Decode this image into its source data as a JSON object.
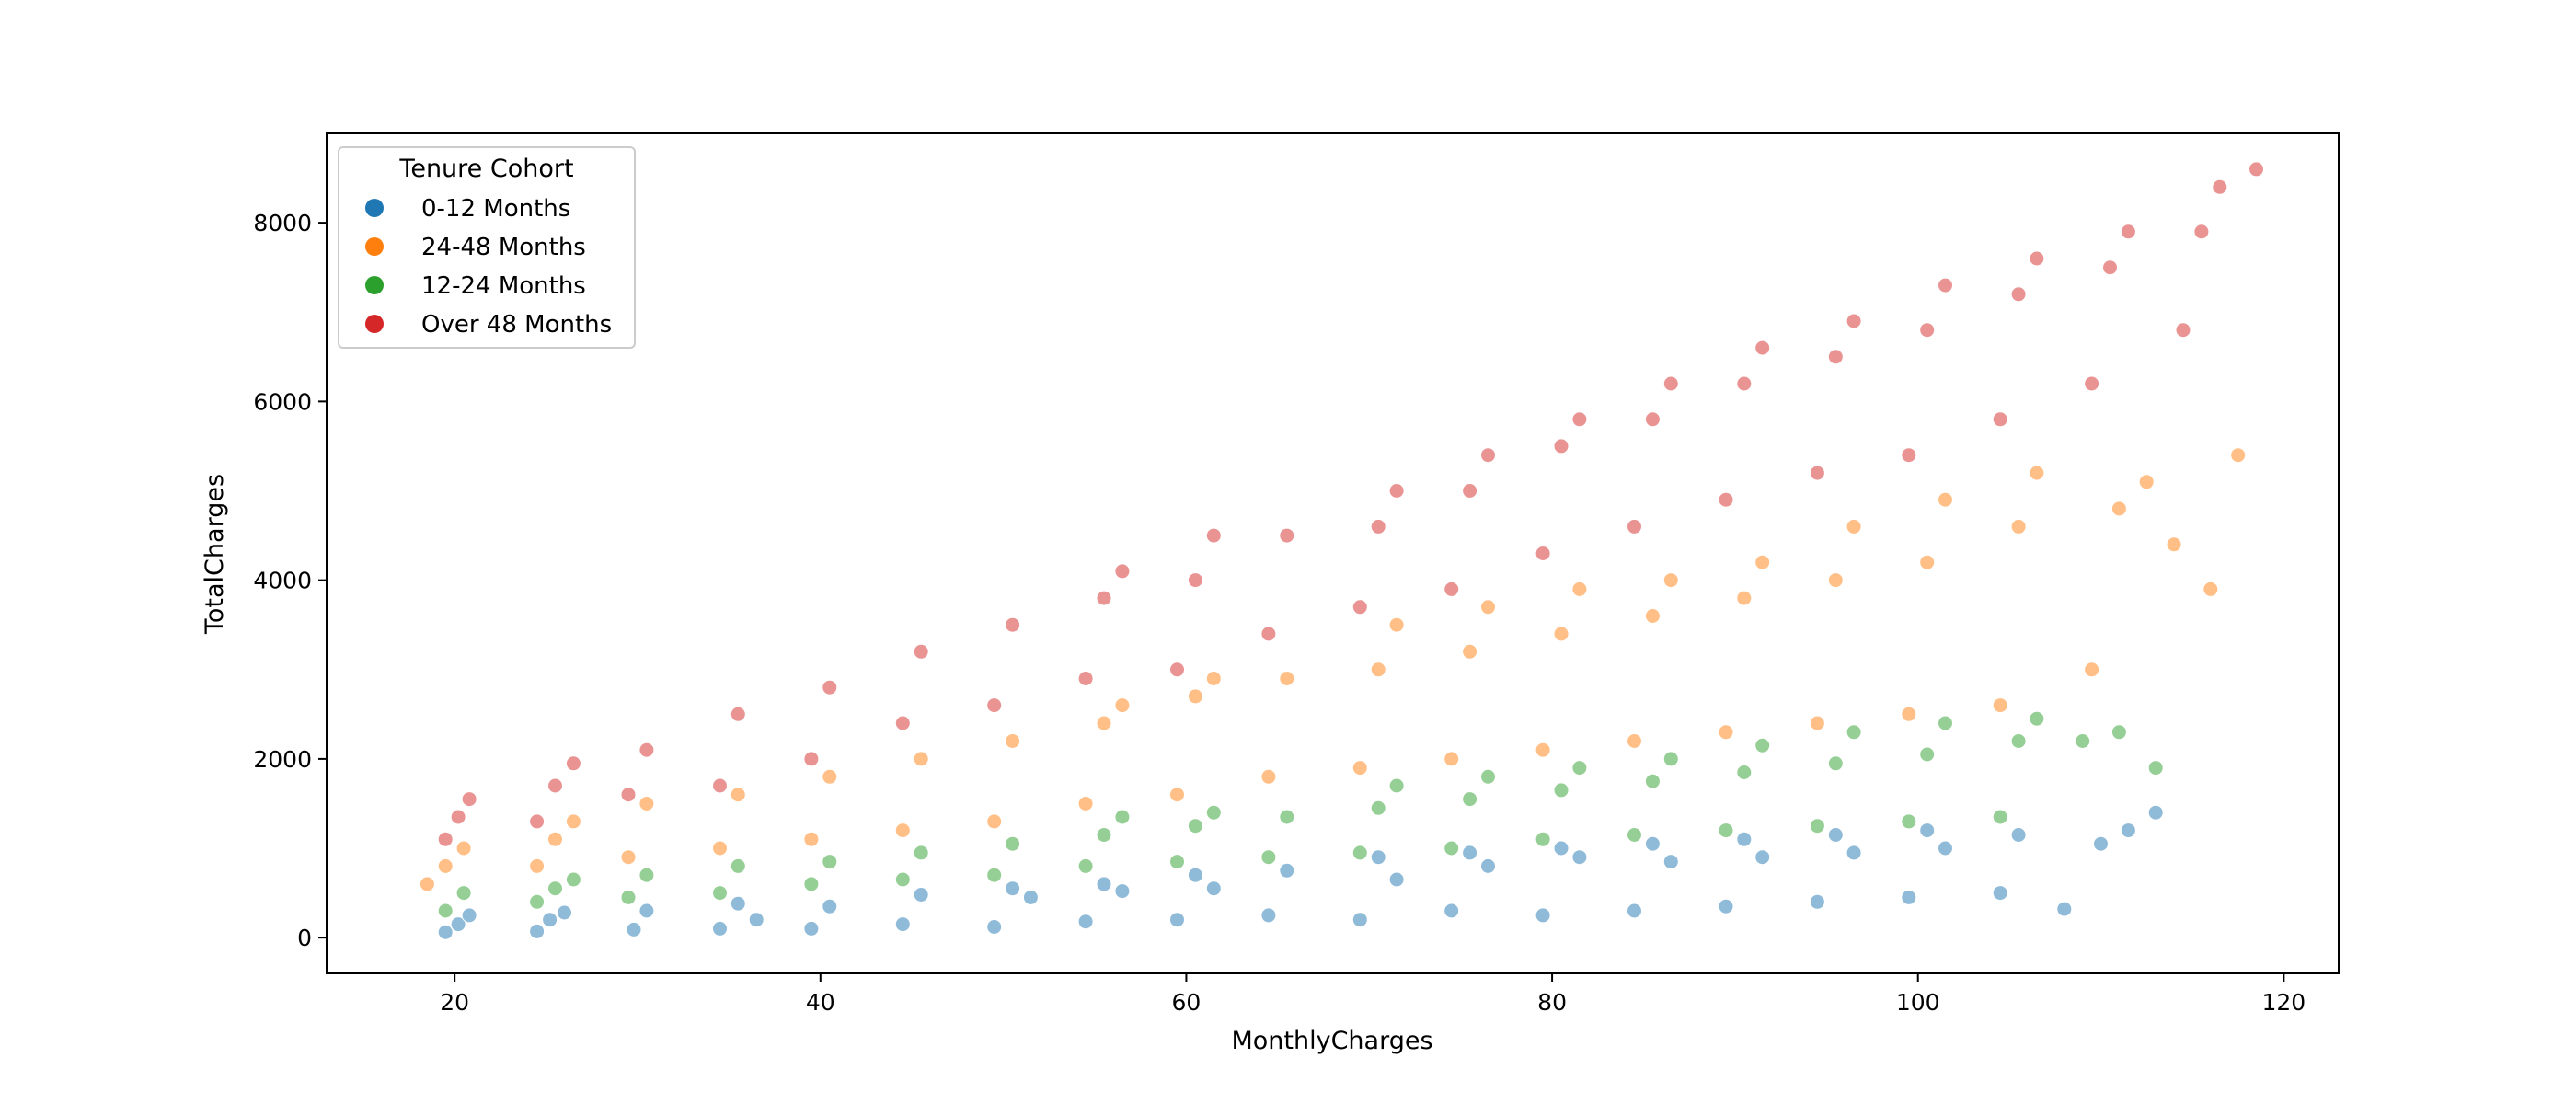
{
  "chart_data": {
    "type": "scatter",
    "title": "",
    "xlabel": "MonthlyCharges",
    "ylabel": "TotalCharges",
    "xlim": [
      13,
      123
    ],
    "ylim": [
      -400,
      9000
    ],
    "x_ticks": [
      20,
      40,
      60,
      80,
      100,
      120
    ],
    "y_ticks": [
      0,
      2000,
      4000,
      6000,
      8000
    ],
    "grid": false,
    "legend": {
      "title": "Tenure Cohort",
      "placement": "upper-left",
      "entries": [
        "0-12 Months",
        "24-48 Months",
        "12-24 Months",
        "Over 48 Months"
      ]
    },
    "point_alpha": 0.5,
    "series": [
      {
        "name": "0-12 Months",
        "color": "#1f77b4",
        "x": [
          19.5,
          20.2,
          20.8,
          24.5,
          25.2,
          26.0,
          29.8,
          30.5,
          34.5,
          35.5,
          36.5,
          39.5,
          40.5,
          44.5,
          45.5,
          49.5,
          50.5,
          51.5,
          54.5,
          55.5,
          56.5,
          59.5,
          60.5,
          61.5,
          64.5,
          65.5,
          69.5,
          70.5,
          71.5,
          74.5,
          75.5,
          76.5,
          79.5,
          80.5,
          81.5,
          84.5,
          85.5,
          86.5,
          89.5,
          90.5,
          91.5,
          94.5,
          95.5,
          96.5,
          99.5,
          100.5,
          101.5,
          104.5,
          105.5,
          108.0,
          110.0,
          111.5,
          113.0
        ],
        "y": [
          60,
          150,
          250,
          70,
          200,
          280,
          90,
          300,
          100,
          380,
          200,
          100,
          350,
          150,
          480,
          120,
          550,
          450,
          180,
          600,
          520,
          200,
          700,
          550,
          250,
          750,
          200,
          900,
          650,
          300,
          950,
          800,
          250,
          1000,
          900,
          300,
          1050,
          850,
          350,
          1100,
          900,
          400,
          1150,
          950,
          450,
          1200,
          1000,
          500,
          1150,
          320,
          1050,
          1200,
          1400
        ]
      },
      {
        "name": "24-48 Months",
        "color": "#ff7f0e",
        "x": [
          18.5,
          19.5,
          20.5,
          24.5,
          25.5,
          26.5,
          29.5,
          30.5,
          34.5,
          35.5,
          39.5,
          40.5,
          44.5,
          45.5,
          49.5,
          50.5,
          54.5,
          55.5,
          56.5,
          59.5,
          60.5,
          61.5,
          64.5,
          65.5,
          69.5,
          70.5,
          71.5,
          74.5,
          75.5,
          76.5,
          79.5,
          80.5,
          81.5,
          84.5,
          85.5,
          86.5,
          89.5,
          90.5,
          91.5,
          94.5,
          95.5,
          96.5,
          99.5,
          100.5,
          101.5,
          104.5,
          105.5,
          106.5,
          109.5,
          111.0,
          112.5,
          114.0,
          116.0,
          117.5
        ],
        "y": [
          600,
          800,
          1000,
          800,
          1100,
          1300,
          900,
          1500,
          1000,
          1600,
          1100,
          1800,
          1200,
          2000,
          1300,
          2200,
          1500,
          2400,
          2600,
          1600,
          2700,
          2900,
          1800,
          2900,
          1900,
          3000,
          3500,
          2000,
          3200,
          3700,
          2100,
          3400,
          3900,
          2200,
          3600,
          4000,
          2300,
          3800,
          4200,
          2400,
          4000,
          4600,
          2500,
          4200,
          4900,
          2600,
          4600,
          5200,
          3000,
          4800,
          5100,
          4400,
          3900,
          5400
        ]
      },
      {
        "name": "12-24 Months",
        "color": "#2ca02c",
        "x": [
          19.5,
          20.5,
          24.5,
          25.5,
          26.5,
          29.5,
          30.5,
          34.5,
          35.5,
          39.5,
          40.5,
          44.5,
          45.5,
          49.5,
          50.5,
          54.5,
          55.5,
          56.5,
          59.5,
          60.5,
          61.5,
          64.5,
          65.5,
          69.5,
          70.5,
          71.5,
          74.5,
          75.5,
          76.5,
          79.5,
          80.5,
          81.5,
          84.5,
          85.5,
          86.5,
          89.5,
          90.5,
          91.5,
          94.5,
          95.5,
          96.5,
          99.5,
          100.5,
          101.5,
          104.5,
          105.5,
          106.5,
          109.0,
          111.0,
          113.0
        ],
        "y": [
          300,
          500,
          400,
          550,
          650,
          450,
          700,
          500,
          800,
          600,
          850,
          650,
          950,
          700,
          1050,
          800,
          1150,
          1350,
          850,
          1250,
          1400,
          900,
          1350,
          950,
          1450,
          1700,
          1000,
          1550,
          1800,
          1100,
          1650,
          1900,
          1150,
          1750,
          2000,
          1200,
          1850,
          2150,
          1250,
          1950,
          2300,
          1300,
          2050,
          2400,
          1350,
          2200,
          2450,
          2200,
          2300,
          1900
        ]
      },
      {
        "name": "Over 48 Months",
        "color": "#d62728",
        "x": [
          19.5,
          20.2,
          20.8,
          24.5,
          25.5,
          26.5,
          29.5,
          30.5,
          34.5,
          35.5,
          39.5,
          40.5,
          44.5,
          45.5,
          49.5,
          50.5,
          54.5,
          55.5,
          56.5,
          59.5,
          60.5,
          61.5,
          64.5,
          65.5,
          69.5,
          70.5,
          71.5,
          74.5,
          75.5,
          76.5,
          79.5,
          80.5,
          81.5,
          84.5,
          85.5,
          86.5,
          89.5,
          90.5,
          91.5,
          94.5,
          95.5,
          96.5,
          99.5,
          100.5,
          101.5,
          104.5,
          105.5,
          106.5,
          109.5,
          110.5,
          111.5,
          114.5,
          115.5,
          116.5,
          118.5
        ],
        "y": [
          1100,
          1350,
          1550,
          1300,
          1700,
          1950,
          1600,
          2100,
          1700,
          2500,
          2000,
          2800,
          2400,
          3200,
          2600,
          3500,
          2900,
          3800,
          4100,
          3000,
          4000,
          4500,
          3400,
          4500,
          3700,
          4600,
          5000,
          3900,
          5000,
          5400,
          4300,
          5500,
          5800,
          4600,
          5800,
          6200,
          4900,
          6200,
          6600,
          5200,
          6500,
          6900,
          5400,
          6800,
          7300,
          5800,
          7200,
          7600,
          6200,
          7500,
          7900,
          6800,
          7900,
          8400,
          8600
        ]
      }
    ]
  }
}
